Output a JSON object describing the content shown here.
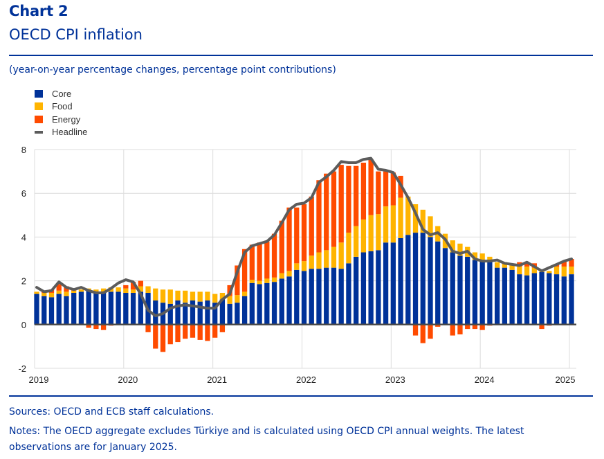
{
  "header": {
    "label": "Chart 2",
    "title": "OECD CPI inflation",
    "subtitle": "(year-on-year percentage changes, percentage point contributions)"
  },
  "legend": [
    {
      "key": "core",
      "label": "Core",
      "color": "#003299",
      "shape": "square"
    },
    {
      "key": "food",
      "label": "Food",
      "color": "#FFB400",
      "shape": "square"
    },
    {
      "key": "energy",
      "label": "Energy",
      "color": "#FF4B00",
      "shape": "square"
    },
    {
      "key": "headline",
      "label": "Headline",
      "color": "#5C5C5C",
      "shape": "line"
    }
  ],
  "footer": {
    "sources": "Sources: OECD and ECB staff calculations.",
    "notes": "Notes: The OECD aggregate excludes Türkiye and is calculated using OECD CPI annual weights. The latest observations are for January 2025."
  },
  "chart_data": {
    "type": "bar",
    "stacked": true,
    "title": "OECD CPI inflation",
    "subtitle": "(year-on-year percentage changes, percentage point contributions)",
    "xlabel": "",
    "ylabel": "",
    "ylim": [
      -2,
      8
    ],
    "yticks": [
      -2,
      0,
      2,
      4,
      6,
      8
    ],
    "xtick_labels": [
      "2019",
      "2020",
      "2021",
      "2022",
      "2023",
      "2024",
      "2025"
    ],
    "grid": true,
    "legend_position": "top-left",
    "frequency": "monthly",
    "start": "2019-01",
    "end": "2025-01",
    "series": [
      {
        "name": "Core",
        "type": "bar",
        "color": "#003299",
        "values": [
          1.4,
          1.3,
          1.25,
          1.4,
          1.3,
          1.45,
          1.5,
          1.55,
          1.45,
          1.45,
          1.5,
          1.5,
          1.45,
          1.45,
          1.5,
          1.45,
          1.1,
          1.0,
          0.95,
          1.1,
          1.0,
          1.1,
          1.05,
          1.1,
          1.0,
          1.15,
          0.95,
          1.0,
          1.3,
          1.9,
          1.85,
          1.9,
          1.95,
          2.1,
          2.2,
          2.5,
          2.45,
          2.55,
          2.55,
          2.6,
          2.6,
          2.55,
          2.8,
          3.1,
          3.3,
          3.35,
          3.4,
          3.75,
          3.75,
          3.95,
          4.1,
          4.2,
          4.2,
          4.0,
          3.8,
          3.5,
          3.3,
          3.15,
          3.1,
          2.95,
          2.95,
          2.9,
          2.6,
          2.6,
          2.5,
          2.3,
          2.25,
          2.35,
          2.4,
          2.35,
          2.3,
          2.2,
          2.3
        ]
      },
      {
        "name": "Food",
        "type": "bar",
        "color": "#FFB400",
        "values": [
          0.1,
          0.15,
          0.2,
          0.15,
          0.2,
          0.1,
          0.1,
          0.1,
          0.15,
          0.2,
          0.2,
          0.2,
          0.2,
          0.15,
          0.25,
          0.3,
          0.55,
          0.6,
          0.65,
          0.45,
          0.55,
          0.4,
          0.45,
          0.4,
          0.4,
          0.3,
          0.35,
          0.35,
          0.2,
          0.15,
          0.15,
          0.2,
          0.2,
          0.25,
          0.25,
          0.3,
          0.45,
          0.6,
          0.75,
          0.8,
          0.95,
          1.2,
          1.4,
          1.4,
          1.5,
          1.65,
          1.65,
          1.65,
          1.7,
          1.85,
          1.75,
          1.3,
          1.05,
          0.95,
          0.7,
          0.65,
          0.55,
          0.55,
          0.45,
          0.35,
          0.3,
          0.2,
          0.25,
          0.25,
          0.2,
          0.35,
          0.4,
          0.25,
          0.1,
          0.1,
          0.35,
          0.45,
          0.35
        ]
      },
      {
        "name": "Energy",
        "type": "bar",
        "color": "#FF4B00",
        "values": [
          0.0,
          0.05,
          0.15,
          0.3,
          0.25,
          0.05,
          0.0,
          -0.15,
          -0.2,
          -0.25,
          -0.05,
          0.0,
          0.15,
          0.35,
          0.25,
          -0.35,
          -1.1,
          -1.25,
          -0.9,
          -0.8,
          -0.65,
          -0.6,
          -0.7,
          -0.75,
          -0.6,
          -0.35,
          0.5,
          1.35,
          1.95,
          1.6,
          1.75,
          1.7,
          2.0,
          2.4,
          2.9,
          2.55,
          2.6,
          2.7,
          3.3,
          3.5,
          3.45,
          3.55,
          3.05,
          2.75,
          2.6,
          2.55,
          1.95,
          1.6,
          1.5,
          1.0,
          0.0,
          -0.5,
          -0.85,
          -0.65,
          -0.1,
          0.0,
          -0.5,
          -0.45,
          -0.2,
          -0.2,
          -0.25,
          -0.05,
          0.0,
          0.0,
          0.05,
          0.2,
          0.15,
          0.2,
          -0.2,
          -0.05,
          0.1,
          0.25,
          0.35
        ]
      },
      {
        "name": "Headline",
        "type": "line",
        "color": "#5C5C5C",
        "values": [
          1.7,
          1.5,
          1.55,
          1.95,
          1.7,
          1.6,
          1.7,
          1.55,
          1.45,
          1.45,
          1.65,
          1.9,
          2.05,
          1.95,
          1.4,
          0.65,
          0.4,
          0.5,
          0.75,
          0.85,
          0.9,
          0.85,
          0.8,
          0.75,
          0.75,
          1.15,
          1.4,
          2.4,
          3.3,
          3.6,
          3.7,
          3.8,
          4.1,
          4.65,
          5.25,
          5.5,
          5.55,
          5.8,
          6.5,
          6.75,
          7.05,
          7.45,
          7.4,
          7.4,
          7.55,
          7.6,
          7.1,
          7.05,
          6.95,
          6.4,
          5.8,
          5.1,
          4.35,
          4.1,
          4.2,
          3.9,
          3.35,
          3.25,
          3.35,
          3.0,
          2.9,
          2.9,
          2.95,
          2.8,
          2.75,
          2.7,
          2.85,
          2.65,
          2.45,
          2.6,
          2.75,
          2.9,
          3.0
        ]
      }
    ]
  }
}
